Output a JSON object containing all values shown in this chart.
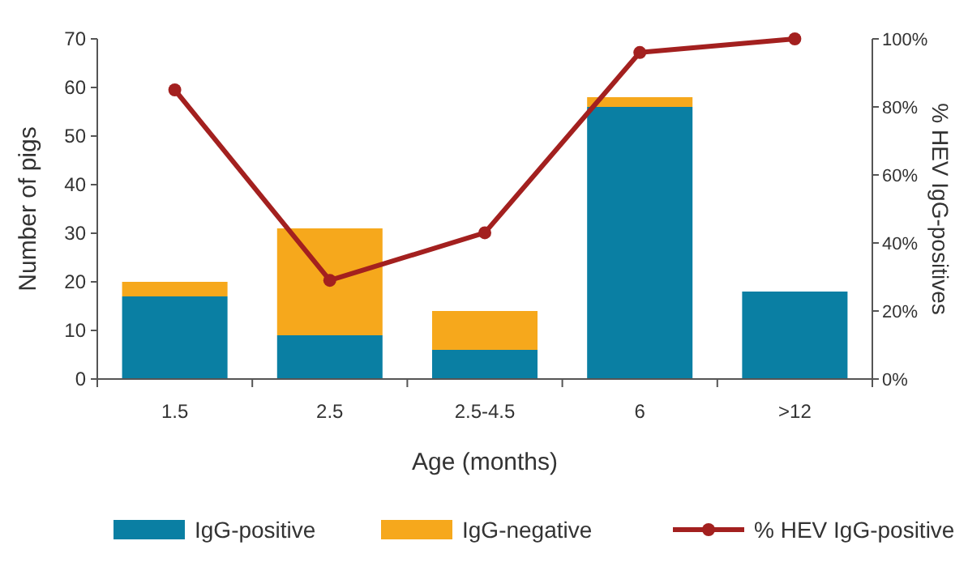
{
  "chart_data": {
    "type": "bar",
    "stacked": true,
    "xlabel": "Age (months)",
    "ylabel": "Number of pigs",
    "y2label": "% HEV IgG-positives",
    "categories": [
      "1.5",
      "2.5",
      "2.5-4.5",
      "6",
      ">12"
    ],
    "series": [
      {
        "name": "IgG-positive",
        "color": "#0a7fa3",
        "values": [
          17,
          9,
          6,
          56,
          18
        ]
      },
      {
        "name": "IgG-negative",
        "color": "#f6a81c",
        "values": [
          3,
          22,
          8,
          2,
          0
        ]
      },
      {
        "name": "% HEV IgG-positive",
        "type": "line",
        "axis": "y2",
        "color": "#a3201f",
        "values": [
          85,
          29,
          43,
          96,
          100
        ]
      }
    ],
    "ylim": [
      0,
      70
    ],
    "yticks": [
      0,
      10,
      20,
      30,
      40,
      50,
      60,
      70
    ],
    "y2lim": [
      0,
      100
    ],
    "y2ticks": [
      {
        "value": 0,
        "label": "0%"
      },
      {
        "value": 20,
        "label": "20%"
      },
      {
        "value": 40,
        "label": "40%"
      },
      {
        "value": 60,
        "label": "60%"
      },
      {
        "value": 80,
        "label": "80%"
      },
      {
        "value": 100,
        "label": "100%"
      }
    ],
    "grid": false,
    "legend": "bottom",
    "marker": "circle",
    "line_style": "solid"
  }
}
